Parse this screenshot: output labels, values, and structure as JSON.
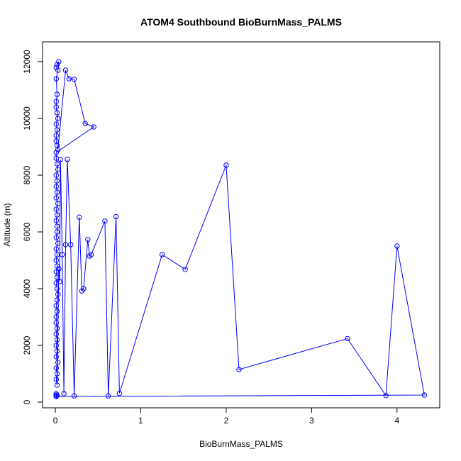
{
  "chart_data": {
    "type": "line",
    "title": "ATOM4 Southbound BioBurnMass_PALMS",
    "xlabel": "BioBurnMass_PALMS",
    "ylabel": "Altitude (m)",
    "xlim": [
      -0.15,
      4.5
    ],
    "ylim": [
      -200,
      12700
    ],
    "xticks": [
      0,
      1,
      2,
      3,
      4
    ],
    "yticks": [
      0,
      2000,
      4000,
      6000,
      8000,
      10000,
      12000
    ],
    "grid": false,
    "series": [
      {
        "color": "#0000ff",
        "marker": "open-circle",
        "x": [
          0.01,
          0.02,
          0.04,
          0.03,
          0.01,
          0.02,
          0.01,
          0.01,
          0.02,
          0.03,
          0.01,
          0.02,
          0.01,
          0.01,
          0.02,
          0.03,
          0.12,
          0.16,
          0.22,
          0.35,
          0.45,
          0.01,
          0.01,
          0.02,
          0.03,
          0.01,
          0.02,
          0.01,
          0.02,
          0.01,
          0.03,
          0.01,
          0.02,
          0.01,
          0.02,
          0.02,
          0.01,
          0.03,
          0.01,
          0.02,
          0.01,
          0.02,
          0.01,
          0.02,
          0.01,
          0.02,
          0.03,
          0.02,
          0.01,
          0.02,
          0.01,
          0.01,
          0.02,
          0.01,
          0.02,
          0.01,
          0.02,
          0.01,
          0.03,
          0.01,
          0.02,
          0.01,
          0.02,
          0.04,
          0.05,
          0.06,
          0.08,
          0.1,
          0.12,
          0.14,
          0.18,
          0.22,
          0.28,
          0.31,
          0.33,
          0.38,
          0.4,
          0.42,
          0.58,
          0.62,
          0.71,
          0.75,
          1.25,
          1.52,
          2.0,
          2.15,
          3.42,
          3.87,
          4.0,
          4.32,
          0.01,
          0.01,
          0.01,
          0.02,
          0.01
        ],
        "y": [
          11800,
          11900,
          12000,
          11700,
          11400,
          10850,
          10600,
          10400,
          10200,
          10000,
          9800,
          9600,
          9400,
          9200,
          9050,
          8900,
          11700,
          11400,
          11380,
          9820,
          9700,
          8800,
          8600,
          8400,
          8200,
          8000,
          7800,
          7600,
          7400,
          7200,
          7000,
          6800,
          6600,
          6400,
          6200,
          6000,
          5800,
          5600,
          5400,
          5200,
          5000,
          4800,
          4600,
          4400,
          4200,
          4000,
          3800,
          3600,
          3400,
          3200,
          3000,
          2800,
          2600,
          2400,
          2200,
          2000,
          1800,
          1600,
          1400,
          1200,
          1000,
          800,
          600,
          4700,
          4250,
          8550,
          5200,
          300,
          5550,
          8560,
          5550,
          220,
          6520,
          3920,
          4000,
          5730,
          5150,
          5200,
          6380,
          220,
          6540,
          310,
          5200,
          4680,
          8350,
          1150,
          2240,
          230,
          5500,
          250,
          200,
          250,
          300,
          230,
          200
        ]
      }
    ]
  }
}
